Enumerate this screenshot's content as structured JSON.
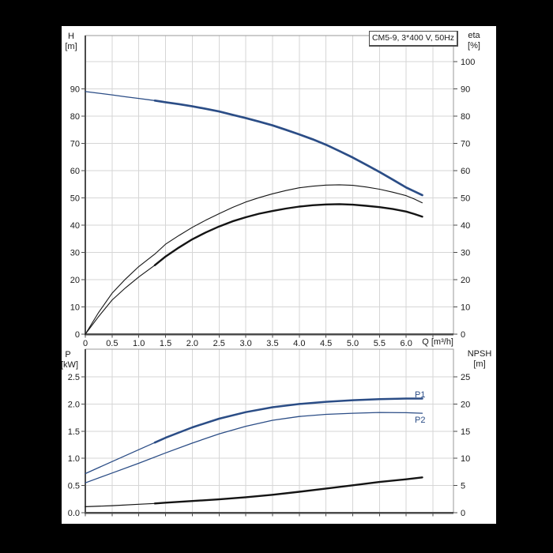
{
  "title_box": {
    "label": "CM5-9, 3*400 V, 50Hz"
  },
  "labels": {
    "top_left_unit_line1": "H",
    "top_left_unit_line2": "[m]",
    "top_right_unit_line1": "eta",
    "top_right_unit_line2": "[%]",
    "x_axis_label": "Q [m³/h]",
    "bottom_left_unit_line1": "P",
    "bottom_left_unit_line2": "[kW]",
    "bottom_right_unit_line1": "NPSH",
    "bottom_right_unit_line2": "[m]",
    "p1": "P1",
    "p2": "P2"
  },
  "colors": {
    "background": "#000000",
    "panel": "#ffffff",
    "curve_blue": "#2b4d86",
    "curve_black": "#141414",
    "grid": "#d6d6d6",
    "border": "#9a9a9a",
    "axis": "#4c4c4c",
    "text": "#1a1a1a",
    "label_blue": "#2b4d86"
  },
  "chart_data": [
    {
      "id": "head-and-efficiency",
      "type": "line",
      "title": "CM5-9, 3*400 V, 50Hz",
      "xlabel": "Q [m³/h]",
      "ylabel_left": "H [m]",
      "ylabel_right": "eta [%]",
      "grid": true,
      "xlim": [
        0,
        6.88
      ],
      "xtick_step": 0.5,
      "xticks": [
        0,
        0.5,
        1.0,
        1.5,
        2.0,
        2.5,
        3.0,
        3.5,
        4.0,
        4.5,
        5.0,
        5.5,
        6.0
      ],
      "xtick_labels": [
        "0",
        "0.5",
        "1.0",
        "1.5",
        "2.0",
        "2.5",
        "3.0",
        "3.5",
        "4.0",
        "4.5",
        "5.0",
        "5.5",
        "6.0"
      ],
      "ylim_left": [
        0,
        90
      ],
      "yticks_left": [
        0,
        10,
        20,
        30,
        40,
        50,
        60,
        70,
        80,
        90
      ],
      "yticks_left_labels": [
        "0",
        "10",
        "20",
        "30",
        "40",
        "50",
        "60",
        "70",
        "80",
        "90"
      ],
      "ylim_right": [
        0,
        100
      ],
      "yticks_right": [
        0,
        10,
        20,
        30,
        40,
        50,
        60,
        70,
        80,
        90,
        100
      ],
      "yticks_right_labels": [
        "0",
        "10",
        "20",
        "30",
        "40",
        "50",
        "60",
        "70",
        "80",
        "90",
        "100"
      ],
      "series": [
        {
          "name": "H",
          "axis": "left",
          "unit": "m",
          "color": "blue",
          "thick_from": 1.3,
          "points": [
            [
              0,
              89
            ],
            [
              0.25,
              88.4
            ],
            [
              0.5,
              87.8
            ],
            [
              0.75,
              87.1
            ],
            [
              1,
              86.5
            ],
            [
              1.3,
              85.7
            ],
            [
              1.5,
              85.1
            ],
            [
              1.75,
              84.4
            ],
            [
              2,
              83.6
            ],
            [
              2.25,
              82.7
            ],
            [
              2.5,
              81.7
            ],
            [
              2.75,
              80.5
            ],
            [
              3,
              79.3
            ],
            [
              3.25,
              78.0
            ],
            [
              3.5,
              76.6
            ],
            [
              3.75,
              75.0
            ],
            [
              4,
              73.3
            ],
            [
              4.25,
              71.5
            ],
            [
              4.5,
              69.5
            ],
            [
              4.75,
              67.2
            ],
            [
              5,
              64.8
            ],
            [
              5.25,
              62.2
            ],
            [
              5.5,
              59.5
            ],
            [
              5.75,
              56.7
            ],
            [
              6,
              53.8
            ],
            [
              6.15,
              52.4
            ],
            [
              6.3,
              51
            ]
          ]
        },
        {
          "name": "eta",
          "axis": "right",
          "unit": "%",
          "color": "black",
          "thick_from": null,
          "points": [
            [
              0,
              0
            ],
            [
              0.25,
              8
            ],
            [
              0.5,
              15
            ],
            [
              0.75,
              20.2
            ],
            [
              1,
              24.8
            ],
            [
              1.3,
              29.4
            ],
            [
              1.5,
              33
            ],
            [
              1.75,
              36.2
            ],
            [
              2,
              39.2
            ],
            [
              2.25,
              41.8
            ],
            [
              2.5,
              44.2
            ],
            [
              2.75,
              46.5
            ],
            [
              3,
              48.5
            ],
            [
              3.25,
              50.1
            ],
            [
              3.5,
              51.5
            ],
            [
              3.75,
              52.7
            ],
            [
              4,
              53.7
            ],
            [
              4.25,
              54.3
            ],
            [
              4.5,
              54.7
            ],
            [
              4.75,
              54.8
            ],
            [
              5,
              54.6
            ],
            [
              5.25,
              54
            ],
            [
              5.5,
              53.2
            ],
            [
              5.75,
              52.1
            ],
            [
              6,
              50.8
            ],
            [
              6.15,
              49.6
            ],
            [
              6.3,
              48.2
            ]
          ]
        },
        {
          "name": "eta2",
          "axis": "right",
          "unit": "%",
          "color": "black",
          "thick_from": 1.3,
          "points": [
            [
              0,
              0
            ],
            [
              0.25,
              6.5
            ],
            [
              0.5,
              12.5
            ],
            [
              0.75,
              17
            ],
            [
              1,
              21
            ],
            [
              1.3,
              25.3
            ],
            [
              1.5,
              28.5
            ],
            [
              1.75,
              31.8
            ],
            [
              2,
              34.8
            ],
            [
              2.25,
              37.3
            ],
            [
              2.5,
              39.5
            ],
            [
              2.75,
              41.4
            ],
            [
              3,
              42.9
            ],
            [
              3.25,
              44.2
            ],
            [
              3.5,
              45.2
            ],
            [
              3.75,
              46.1
            ],
            [
              4,
              46.8
            ],
            [
              4.25,
              47.3
            ],
            [
              4.5,
              47.6
            ],
            [
              4.75,
              47.7
            ],
            [
              5,
              47.5
            ],
            [
              5.25,
              47.1
            ],
            [
              5.5,
              46.6
            ],
            [
              5.75,
              45.9
            ],
            [
              6,
              45
            ],
            [
              6.15,
              44.1
            ],
            [
              6.3,
              43.1
            ]
          ]
        }
      ]
    },
    {
      "id": "power-and-npsh",
      "type": "line",
      "title": "",
      "xlabel": "",
      "ylabel_left": "P [kW]",
      "ylabel_right": "NPSH [m]",
      "grid": true,
      "xlim": [
        0,
        6.88
      ],
      "xtick_step": 0.5,
      "xticks": [],
      "xtick_labels": [],
      "ylim_left": [
        0,
        2.5
      ],
      "yticks_left": [
        0,
        0.5,
        1.0,
        1.5,
        2.0,
        2.5
      ],
      "yticks_left_labels": [
        "0.0",
        "0.5",
        "1.0",
        "1.5",
        "2.0",
        "2.5"
      ],
      "ylim_right": [
        0,
        25
      ],
      "yticks_right": [
        0,
        5,
        10,
        15,
        20,
        25
      ],
      "yticks_right_labels": [
        "0",
        "5",
        "10",
        "15",
        "20",
        "25"
      ],
      "series": [
        {
          "name": "P1",
          "axis": "left",
          "unit": "kW",
          "color": "blue",
          "thick_from": 1.3,
          "points": [
            [
              0,
              0.72
            ],
            [
              0.5,
              0.94
            ],
            [
              1,
              1.16
            ],
            [
              1.3,
              1.29
            ],
            [
              1.5,
              1.38
            ],
            [
              2,
              1.57
            ],
            [
              2.5,
              1.73
            ],
            [
              3,
              1.85
            ],
            [
              3.5,
              1.94
            ],
            [
              4,
              2.0
            ],
            [
              4.5,
              2.04
            ],
            [
              5,
              2.07
            ],
            [
              5.5,
              2.09
            ],
            [
              6,
              2.1
            ],
            [
              6.3,
              2.1
            ]
          ]
        },
        {
          "name": "P2",
          "axis": "left",
          "unit": "kW",
          "color": "blue",
          "thick_from": null,
          "points": [
            [
              0,
              0.55
            ],
            [
              0.5,
              0.73
            ],
            [
              1,
              0.91
            ],
            [
              1.5,
              1.1
            ],
            [
              2,
              1.28
            ],
            [
              2.5,
              1.45
            ],
            [
              3,
              1.59
            ],
            [
              3.5,
              1.7
            ],
            [
              4,
              1.77
            ],
            [
              4.5,
              1.81
            ],
            [
              5,
              1.83
            ],
            [
              5.5,
              1.845
            ],
            [
              6,
              1.84
            ],
            [
              6.3,
              1.83
            ]
          ]
        },
        {
          "name": "NPSH",
          "axis": "right",
          "unit": "m",
          "color": "black",
          "thick_from": 1.3,
          "points": [
            [
              0,
              1.1
            ],
            [
              0.5,
              1.3
            ],
            [
              1,
              1.55
            ],
            [
              1.3,
              1.7
            ],
            [
              1.5,
              1.85
            ],
            [
              2,
              2.15
            ],
            [
              2.5,
              2.45
            ],
            [
              3,
              2.85
            ],
            [
              3.5,
              3.3
            ],
            [
              4,
              3.85
            ],
            [
              4.5,
              4.45
            ],
            [
              5,
              5.05
            ],
            [
              5.5,
              5.65
            ],
            [
              6,
              6.15
            ],
            [
              6.3,
              6.5
            ]
          ]
        }
      ]
    }
  ]
}
